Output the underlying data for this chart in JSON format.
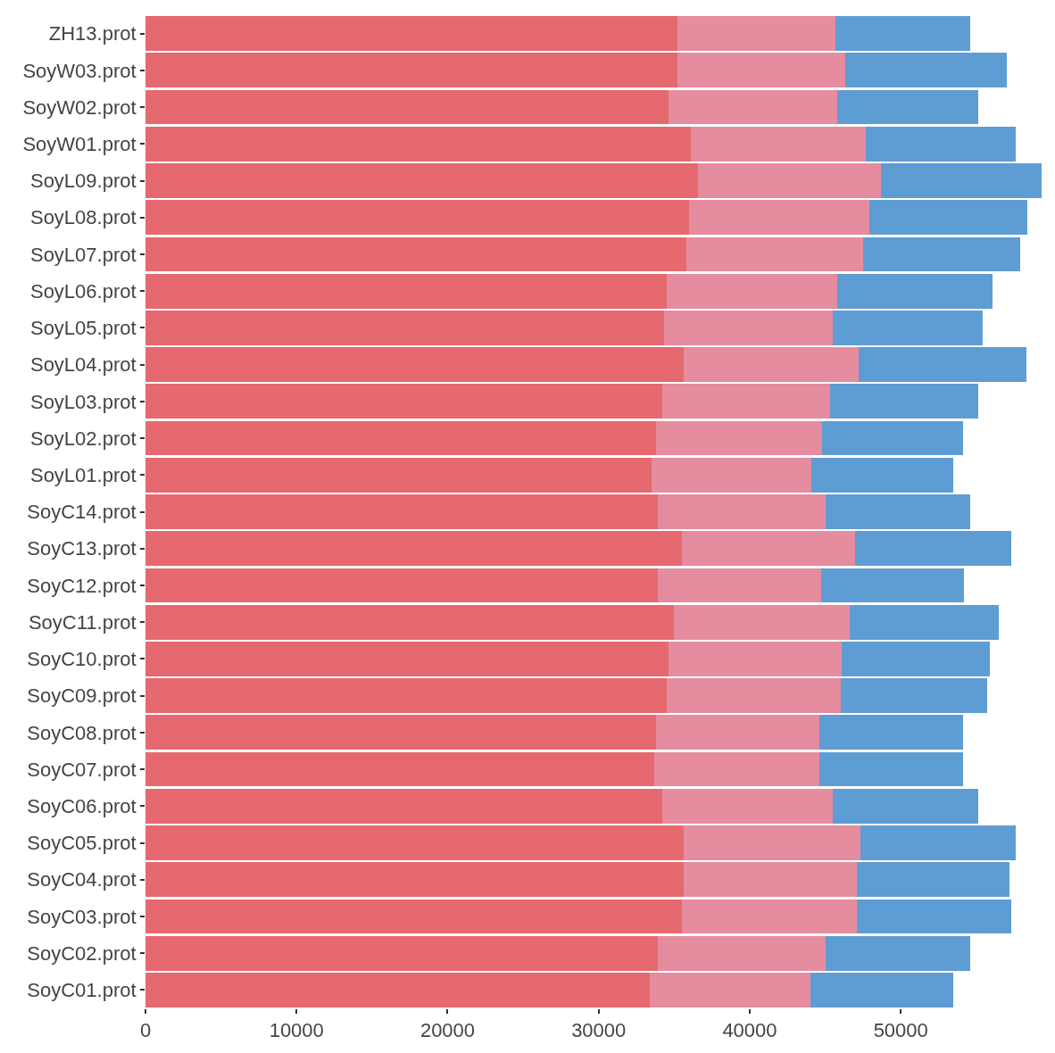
{
  "chart_data": {
    "type": "bar",
    "orientation": "horizontal",
    "stacked": true,
    "grid": false,
    "categories": [
      "ZH13.prot",
      "SoyW03.prot",
      "SoyW02.prot",
      "SoyW01.prot",
      "SoyL09.prot",
      "SoyL08.prot",
      "SoyL07.prot",
      "SoyL06.prot",
      "SoyL05.prot",
      "SoyL04.prot",
      "SoyL03.prot",
      "SoyL02.prot",
      "SoyL01.prot",
      "SoyC14.prot",
      "SoyC13.prot",
      "SoyC12.prot",
      "SoyC11.prot",
      "SoyC10.prot",
      "SoyC09.prot",
      "SoyC08.prot",
      "SoyC07.prot",
      "SoyC06.prot",
      "SoyC05.prot",
      "SoyC04.prot",
      "SoyC03.prot",
      "SoyC02.prot",
      "SoyC01.prot"
    ],
    "series": [
      {
        "color": "#e5696f",
        "values": [
          35200,
          35200,
          34600,
          36100,
          36600,
          36000,
          35800,
          34500,
          34300,
          35600,
          34200,
          33800,
          33500,
          33900,
          35500,
          33900,
          35000,
          34600,
          34500,
          33800,
          33700,
          34200,
          35600,
          35600,
          35500,
          33900,
          33400
        ]
      },
      {
        "color": "#e58c9f",
        "values": [
          10500,
          11100,
          11200,
          11600,
          12100,
          11900,
          11700,
          11300,
          11200,
          11600,
          11100,
          11000,
          10600,
          11100,
          11500,
          10800,
          11600,
          11500,
          11500,
          10800,
          10900,
          11300,
          11700,
          11500,
          11600,
          11100,
          10600
        ]
      },
      {
        "color": "#5e9dd3",
        "values": [
          8900,
          10700,
          9300,
          9900,
          10600,
          10500,
          10400,
          10300,
          9900,
          11100,
          9800,
          9300,
          9400,
          9600,
          10300,
          9500,
          9900,
          9800,
          9700,
          9500,
          9500,
          9600,
          10300,
          10100,
          10200,
          9600,
          9500
        ]
      }
    ],
    "xlim": [
      0,
      59500
    ],
    "xticks": [
      0,
      10000,
      20000,
      30000,
      40000,
      50000
    ]
  }
}
